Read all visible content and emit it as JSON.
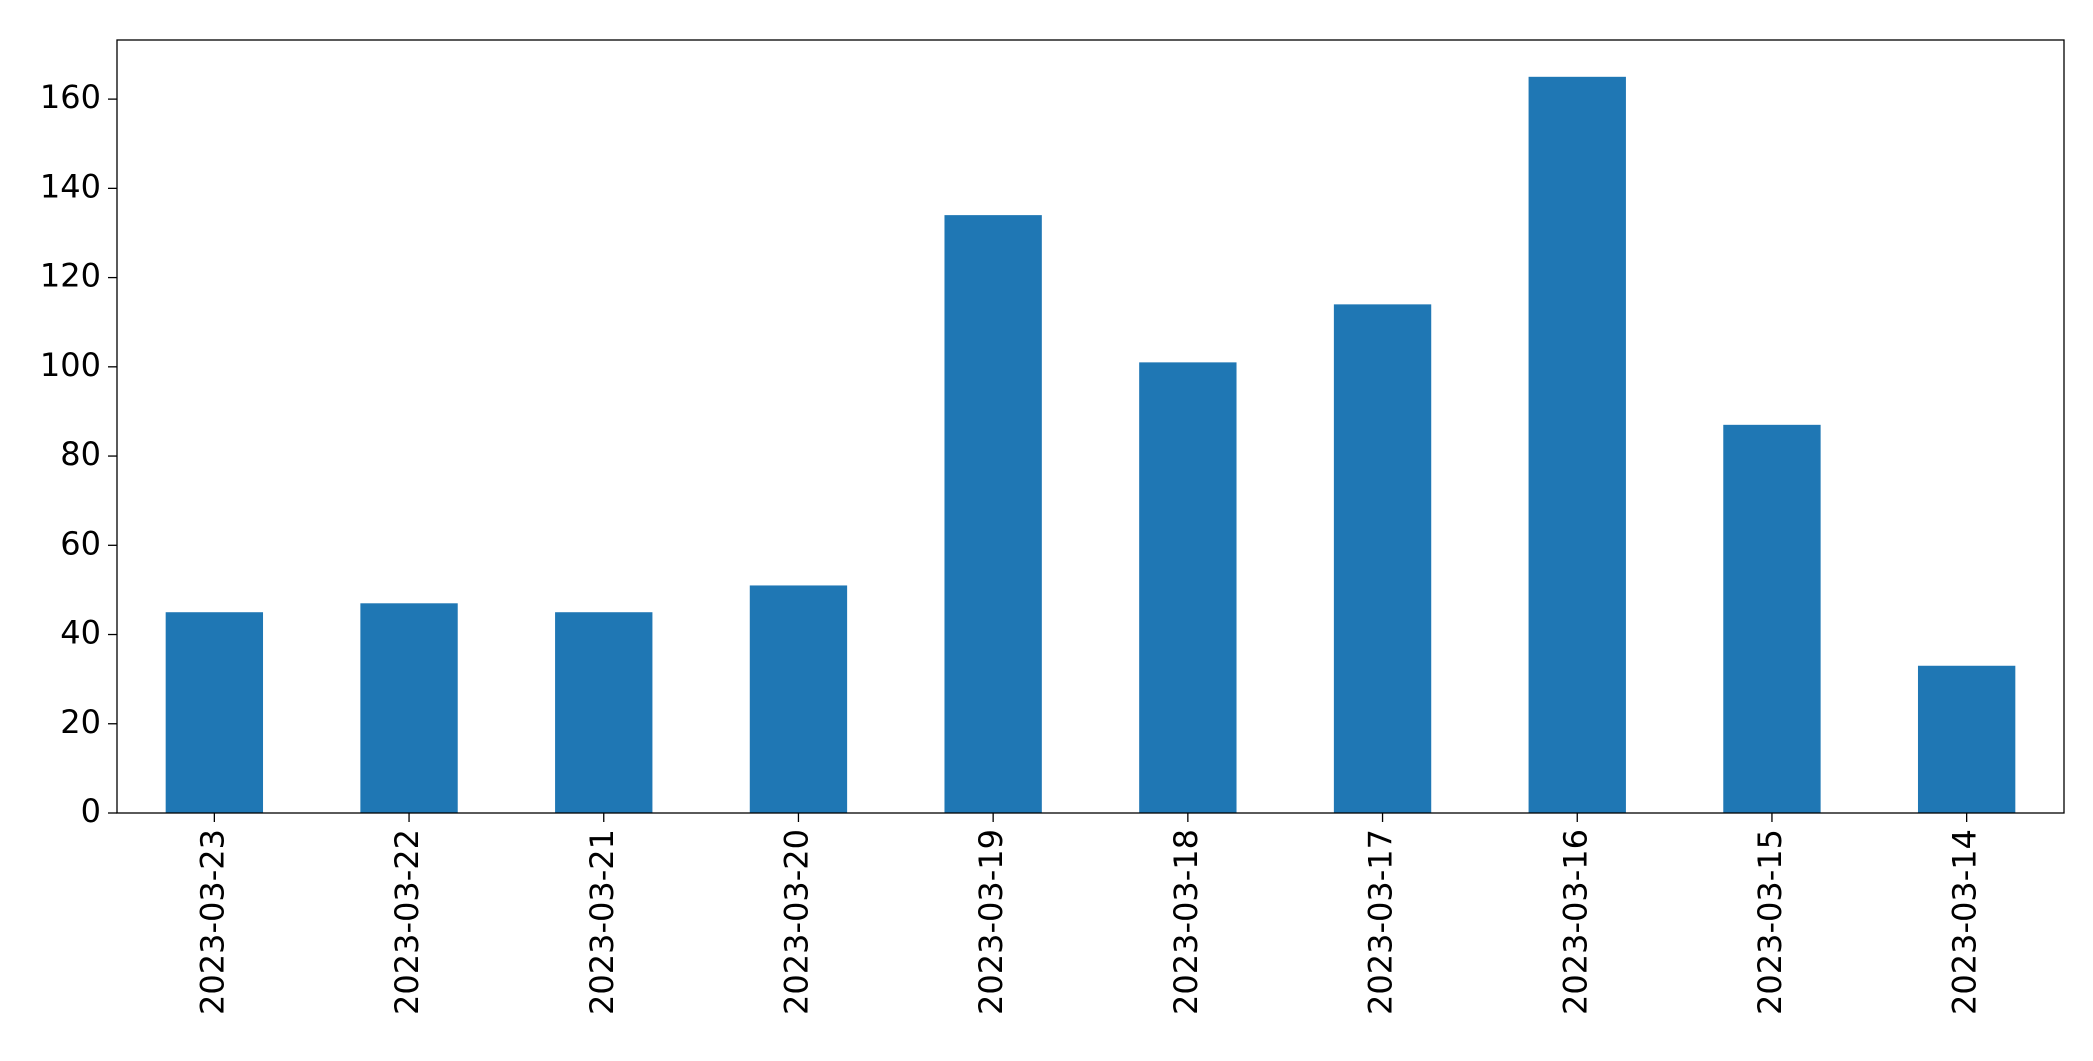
{
  "chart_data": {
    "type": "bar",
    "categories": [
      "2023-03-23",
      "2023-03-22",
      "2023-03-21",
      "2023-03-20",
      "2023-03-19",
      "2023-03-18",
      "2023-03-17",
      "2023-03-16",
      "2023-03-15",
      "2023-03-14"
    ],
    "values": [
      45,
      47,
      45,
      51,
      134,
      101,
      114,
      165,
      87,
      33
    ],
    "color": "#1f77b4",
    "ylim": [
      0,
      173.25
    ],
    "yticks": [
      0,
      20,
      40,
      60,
      80,
      100,
      120,
      140,
      160
    ],
    "grid": false
  }
}
